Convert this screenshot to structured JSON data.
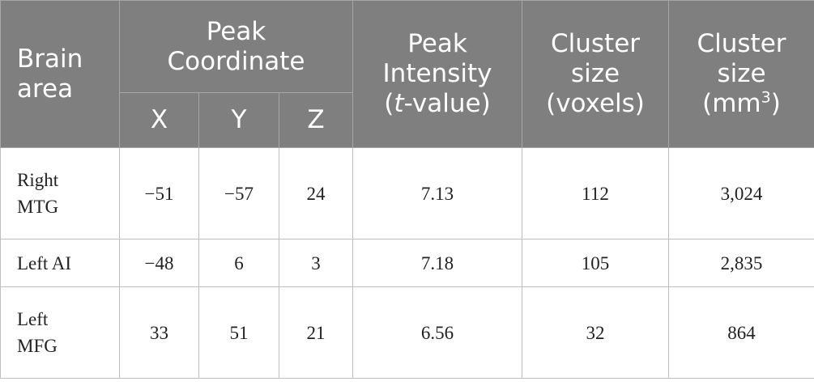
{
  "table": {
    "header": {
      "brain_area": [
        "Brain",
        "area"
      ],
      "peak_coordinate": [
        "Peak",
        "Coordinate"
      ],
      "coord_x": "X",
      "coord_y": "Y",
      "coord_z": "Z",
      "peak_intensity": [
        "Peak",
        "Intensity",
        "t",
        "-value)"
      ],
      "peak_intensity_open_paren": "(",
      "cluster_voxels": [
        "Cluster",
        "size",
        "(voxels)"
      ],
      "cluster_mm": [
        "Cluster",
        "size",
        "(mm",
        "3",
        ")"
      ]
    },
    "rows": [
      {
        "area": [
          "Right",
          "MTG"
        ],
        "x": "−51",
        "y": "−57",
        "z": "24",
        "intensity": "7.13",
        "voxels": "112",
        "mm3": "3,024"
      },
      {
        "area": [
          "Left AI"
        ],
        "x": "−48",
        "y": "6",
        "z": "3",
        "intensity": "7.18",
        "voxels": "105",
        "mm3": "2,835"
      },
      {
        "area": [
          "Left",
          "MFG"
        ],
        "x": "33",
        "y": "51",
        "z": "21",
        "intensity": "6.56",
        "voxels": "32",
        "mm3": "864"
      }
    ]
  }
}
